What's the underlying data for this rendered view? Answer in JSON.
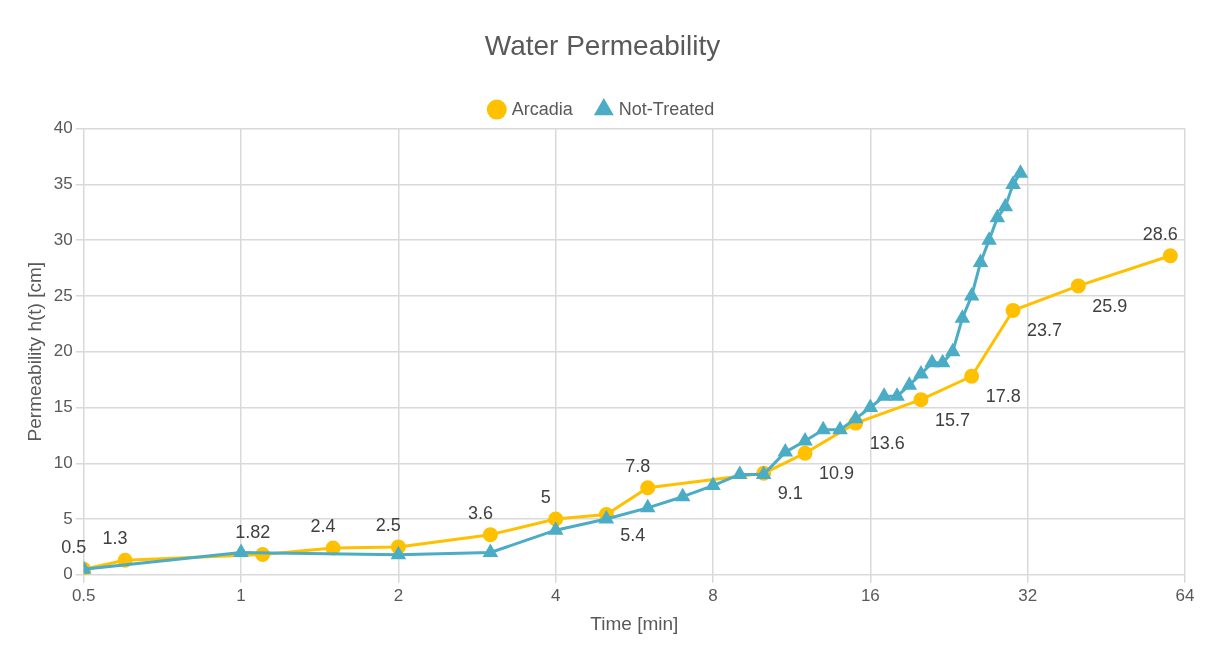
{
  "chart_data": {
    "type": "line",
    "title": "Water Permeability",
    "xlabel": "Time [min]",
    "ylabel": "Permeability h(t) [cm]",
    "log": "x",
    "xlim": [
      0.5,
      64
    ],
    "xticks": [
      0.5,
      1,
      2,
      4,
      8,
      16,
      32,
      64
    ],
    "ylim": [
      0,
      40
    ],
    "yticks": [
      0,
      5,
      10,
      15,
      20,
      25,
      30,
      35,
      40
    ],
    "grid": true,
    "legend": "top",
    "series": [
      {
        "name": "Arcadia",
        "color": "#ffc000",
        "marker": "circle",
        "x": [
          0.5,
          0.6,
          1.1,
          1.5,
          2,
          3,
          4,
          5,
          6,
          10,
          12,
          15,
          20,
          25,
          30,
          40,
          60
        ],
        "values": [
          0.5,
          1.3,
          1.82,
          2.4,
          2.5,
          3.6,
          5,
          5.4,
          7.8,
          9.1,
          10.9,
          13.6,
          15.7,
          17.8,
          23.7,
          25.9,
          28.6
        ],
        "value_labels": [
          "0.5",
          "1.3",
          "1.82",
          "2.4",
          "2.5",
          "3.6",
          "5",
          "5.4",
          "7.8",
          "9.1",
          "10.9",
          "13.6",
          "15.7",
          "17.8",
          "23.7",
          "25.9",
          "28.6"
        ]
      },
      {
        "name": "Not-Treated",
        "color": "#4bacc6",
        "marker": "triangle",
        "x": [
          0.5,
          1,
          2,
          3,
          4,
          5,
          6,
          7,
          8,
          9,
          10,
          11,
          12,
          13,
          14,
          15,
          16,
          17,
          18,
          19,
          20,
          21,
          22,
          23,
          24,
          25,
          26,
          27,
          28,
          29,
          30,
          31
        ],
        "values": [
          0.5,
          2,
          1.8,
          2,
          4,
          5,
          6,
          7,
          8,
          9,
          9,
          11,
          12,
          13,
          13,
          14,
          15,
          16,
          16,
          17,
          18,
          19,
          19,
          20,
          23,
          25,
          28,
          30,
          32,
          33,
          35,
          36
        ]
      }
    ]
  }
}
